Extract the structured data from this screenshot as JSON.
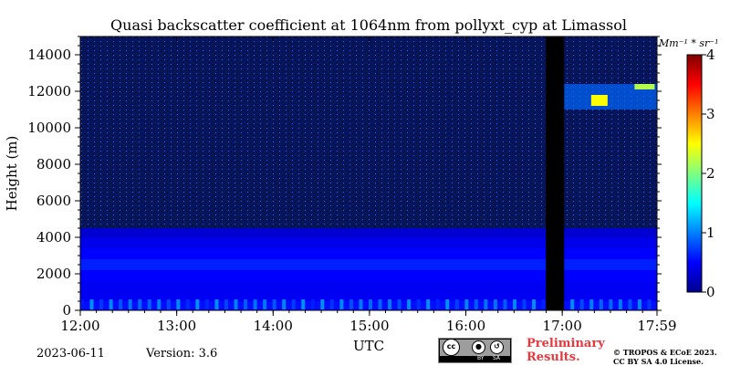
{
  "chart_data": {
    "type": "heatmap",
    "title": "Quasi backscatter coefficient at 1064nm from pollyxt_cyp at Limassol",
    "xlabel": "UTC",
    "ylabel": "Height (m)",
    "x_ticks": [
      "12:00",
      "13:00",
      "14:00",
      "15:00",
      "16:00",
      "17:00",
      "17:59"
    ],
    "x_tick_hours": [
      12.0,
      13.0,
      14.0,
      15.0,
      16.0,
      17.0,
      17.983
    ],
    "xlim_hours": [
      12.0,
      17.983
    ],
    "y_ticks": [
      0,
      2000,
      4000,
      6000,
      8000,
      10000,
      12000,
      14000
    ],
    "ylim": [
      0,
      15000
    ],
    "colorbar": {
      "label": "Mm⁻¹ * sr⁻¹",
      "min": 0,
      "max": 4,
      "ticks": [
        0,
        1,
        2,
        3,
        4
      ],
      "colormap": "jet"
    },
    "no_data_interval_hours": [
      16.83,
      17.02
    ],
    "aerosol_layer_top_m": 4500,
    "cloud_layer": {
      "start_hour": 17.0,
      "end_hour": 17.983,
      "height_m": [
        11000,
        12400
      ],
      "max_value": 2.5
    },
    "surface_layer_max_value": 1.2
  },
  "footer": {
    "date": "2023-06-11",
    "version": "Version: 3.6",
    "preliminary_line1": "Preliminary",
    "preliminary_line2": "Results.",
    "copyright_line1": "© TROPOS & ECoE 2023.",
    "copyright_line2": "CC BY SA 4.0 License."
  },
  "license_logo": {
    "cc": "cc",
    "by": "BY",
    "sa": "SA"
  }
}
